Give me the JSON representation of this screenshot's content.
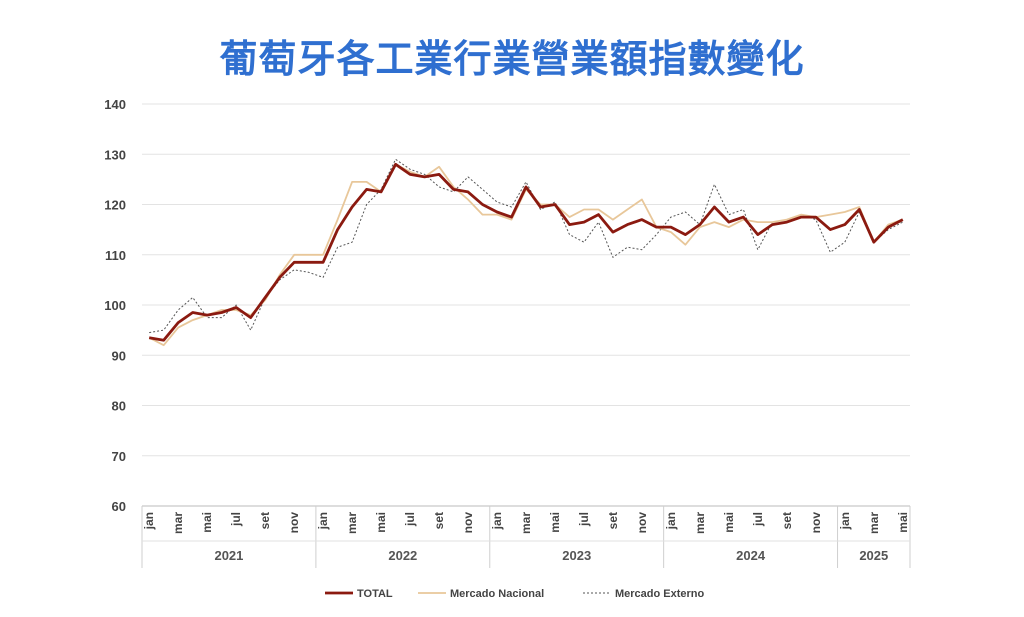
{
  "chart_data": {
    "type": "line",
    "title": "葡萄牙各工業行業營業額指數變化",
    "xlabel": "",
    "ylabel": "",
    "ylim": [
      60,
      140
    ],
    "yticks": [
      60,
      70,
      80,
      90,
      100,
      110,
      120,
      130,
      140
    ],
    "grid": true,
    "legend_position": "bottom",
    "colors": {
      "TOTAL": "#8b1a10",
      "Mercado Nacional": "#e8c79a",
      "Mercado Externo": "#555555"
    },
    "month_labels": [
      "jan",
      "mar",
      "mai",
      "jul",
      "set",
      "nov"
    ],
    "month_labels_2025": [
      "jan",
      "mar",
      "mai"
    ],
    "years": [
      {
        "label": "2021",
        "start": 0,
        "count": 12
      },
      {
        "label": "2022",
        "start": 12,
        "count": 12
      },
      {
        "label": "2023",
        "start": 24,
        "count": 12
      },
      {
        "label": "2024",
        "start": 36,
        "count": 12
      },
      {
        "label": "2025",
        "start": 48,
        "count": 5
      }
    ],
    "series": [
      {
        "name": "TOTAL",
        "values": [
          93.5,
          93,
          96.5,
          98.5,
          98,
          98.5,
          99.5,
          97.5,
          101.5,
          105.5,
          108.5,
          108.5,
          108.5,
          115,
          119.5,
          123,
          122.5,
          128,
          126,
          125.5,
          126,
          123,
          122.5,
          120,
          118.5,
          117.5,
          123.5,
          119.5,
          120,
          116,
          116.5,
          118,
          114.5,
          116,
          117,
          115.5,
          115.5,
          114,
          116,
          119.5,
          116.5,
          117.5,
          114,
          116,
          116.5,
          117.5,
          117.5,
          115,
          116,
          119,
          112.5,
          115.5,
          117
        ]
      },
      {
        "name": "Mercado Nacional",
        "values": [
          93.5,
          92,
          95.5,
          97,
          98,
          99,
          99,
          98,
          101,
          106,
          110,
          110,
          110,
          117,
          124.5,
          124.5,
          122.5,
          128,
          126.5,
          125.5,
          127.5,
          123.5,
          121,
          118,
          118,
          117,
          123,
          120,
          120,
          117.5,
          119,
          119,
          117,
          119,
          121,
          115.5,
          114.5,
          112,
          115.5,
          116.5,
          115.5,
          117,
          116.5,
          116.5,
          117,
          118,
          117.5,
          118,
          118.5,
          119.5,
          112.5,
          116,
          117
        ]
      },
      {
        "name": "Mercado Externo",
        "values": [
          94.5,
          95,
          99,
          101.5,
          97.5,
          97.5,
          100,
          95,
          101.5,
          105,
          107,
          106.5,
          105.5,
          111.5,
          112.5,
          120,
          123,
          129,
          127,
          126,
          123.5,
          122.5,
          125.5,
          123,
          120.5,
          119.5,
          124.5,
          119,
          120.5,
          114,
          112.5,
          116.5,
          109.5,
          111.5,
          111,
          114,
          117.5,
          118.5,
          116,
          124,
          118,
          119,
          111,
          116.5,
          117,
          118,
          117,
          110.5,
          112.5,
          118.5,
          112.5,
          115,
          116.5
        ]
      }
    ]
  }
}
